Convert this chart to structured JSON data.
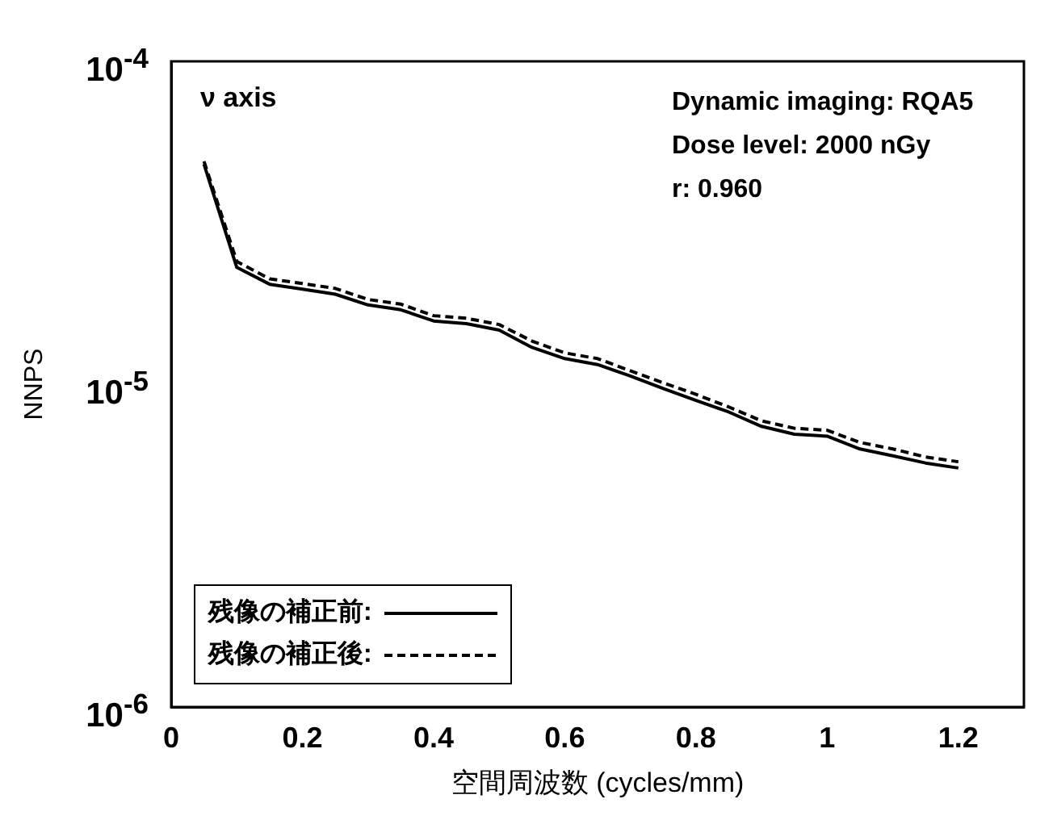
{
  "chart_data": {
    "type": "line",
    "xlabel": "空間周波数 (cycles/mm)",
    "ylabel": "NNPS",
    "annotations": [
      "ν axis",
      "Dynamic imaging: RQA5",
      "Dose level: 2000 nGy",
      "r: 0.960"
    ],
    "x": [
      0.05,
      0.1,
      0.15,
      0.2,
      0.25,
      0.3,
      0.35,
      0.4,
      0.45,
      0.5,
      0.55,
      0.6,
      0.65,
      0.7,
      0.75,
      0.8,
      0.85,
      0.9,
      0.95,
      1.0,
      1.05,
      1.1,
      1.15,
      1.2
    ],
    "series": [
      {
        "name": "残像の補正前:",
        "color": "#000000",
        "line_style": "solid",
        "values": [
          4.8e-05,
          2.3e-05,
          2.04e-05,
          1.97e-05,
          1.9e-05,
          1.76e-05,
          1.7e-05,
          1.57e-05,
          1.54e-05,
          1.47e-05,
          1.3e-05,
          1.2e-05,
          1.15e-05,
          1.06e-05,
          9.7e-06,
          8.9e-06,
          8.2e-06,
          7.4e-06,
          7e-06,
          6.9e-06,
          6.3e-06,
          6e-06,
          5.7e-06,
          5.5e-06
        ]
      },
      {
        "name": "残像の補正後:",
        "color": "#000000",
        "line_style": "dashed",
        "values": [
          4.9e-05,
          2.4e-05,
          2.12e-05,
          2.05e-05,
          1.98e-05,
          1.83e-05,
          1.77e-05,
          1.63e-05,
          1.6e-05,
          1.53e-05,
          1.36e-05,
          1.25e-05,
          1.2e-05,
          1.1e-05,
          1.01e-05,
          9.3e-06,
          8.5e-06,
          7.7e-06,
          7.3e-06,
          7.2e-06,
          6.6e-06,
          6.3e-06,
          5.95e-06,
          5.75e-06
        ]
      }
    ],
    "log": true,
    "grid": false,
    "legend": "bottom left",
    "marker": "none",
    "xlim": [
      0,
      1.3
    ],
    "xticks": [
      0,
      0.2,
      0.4,
      0.6,
      0.8,
      1,
      1.2
    ],
    "ylim": [
      1e-06,
      0.0001
    ],
    "yticks": [
      {
        "value": 1e-06,
        "label": "10$^{-6}$"
      },
      {
        "value": 1e-05,
        "label": "10$^{-5}$"
      },
      {
        "value": 0.0001,
        "label": "10$^{-4}$"
      }
    ]
  }
}
